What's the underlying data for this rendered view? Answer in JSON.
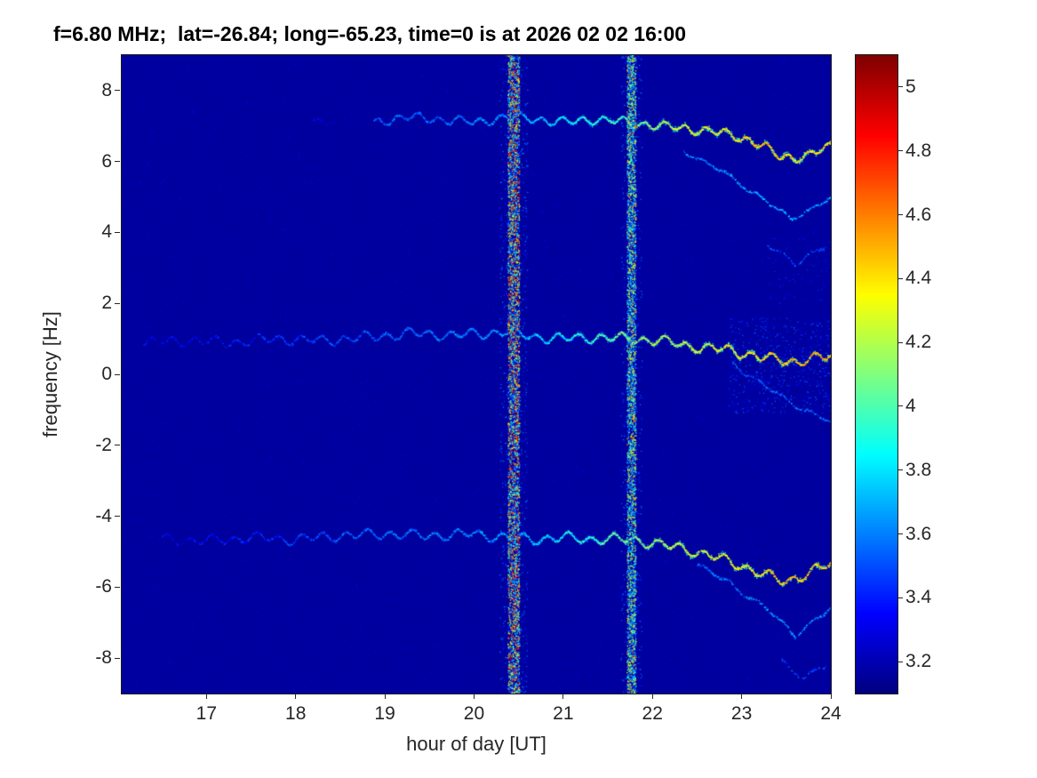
{
  "chart_data": {
    "type": "heatmap",
    "title": "f=6.80 MHz;  lat=-26.84; long=-65.23, time=0 is at 2026 02 02 16:00",
    "xlabel": "hour of day [UT]",
    "ylabel": "frequency [Hz]",
    "xlim": [
      16.05,
      24
    ],
    "ylim": [
      -9,
      9
    ],
    "grid": false,
    "x_ticks": [
      {
        "v": 17,
        "label": "17"
      },
      {
        "v": 18,
        "label": "18"
      },
      {
        "v": 19,
        "label": "19"
      },
      {
        "v": 20,
        "label": "20"
      },
      {
        "v": 21,
        "label": "21"
      },
      {
        "v": 22,
        "label": "22"
      },
      {
        "v": 23,
        "label": "23"
      },
      {
        "v": 24,
        "label": "24"
      }
    ],
    "y_ticks": [
      {
        "v": -8,
        "label": "-8"
      },
      {
        "v": -6,
        "label": "-6"
      },
      {
        "v": -4,
        "label": "-4"
      },
      {
        "v": -2,
        "label": "-2"
      },
      {
        "v": 0,
        "label": "0"
      },
      {
        "v": 2,
        "label": "2"
      },
      {
        "v": 4,
        "label": "4"
      },
      {
        "v": 6,
        "label": "6"
      },
      {
        "v": 8,
        "label": "8"
      }
    ],
    "colorbar": {
      "colormap": "jet",
      "position": "right",
      "range": [
        3.1,
        5.1
      ],
      "ticks": [
        {
          "v": 3.2,
          "label": "3.2"
        },
        {
          "v": 3.4,
          "label": "3.4"
        },
        {
          "v": 3.6,
          "label": "3.6"
        },
        {
          "v": 3.8,
          "label": "3.8"
        },
        {
          "v": 4,
          "label": "4"
        },
        {
          "v": 4.2,
          "label": "4.2"
        },
        {
          "v": 4.4,
          "label": "4.4"
        },
        {
          "v": 4.6,
          "label": "4.6"
        },
        {
          "v": 4.8,
          "label": "4.8"
        },
        {
          "v": 5,
          "label": "5"
        }
      ]
    },
    "background_value": 3.16,
    "noise": {
      "count": 3000,
      "vmin": 3.17,
      "vmax": 3.33
    },
    "vertical_stripes": [
      {
        "x": 20.44,
        "w": 0.13,
        "density": 0.95,
        "vmin": 3.35,
        "vmax": 5.0,
        "red_prob": 0.07
      },
      {
        "x": 21.76,
        "w": 0.1,
        "density": 0.9,
        "vmin": 3.45,
        "vmax": 4.55,
        "red_prob": 0.02
      }
    ],
    "scatter_patches": [
      {
        "x0": 22.85,
        "x1": 24.0,
        "y0": -1.1,
        "y1": 1.6,
        "count": 900,
        "vmin": 3.22,
        "vmax": 3.55
      },
      {
        "x0": 23.3,
        "x1": 24.0,
        "y0": 2.0,
        "y1": 4.0,
        "count": 120,
        "vmin": 3.2,
        "vmax": 3.45
      }
    ],
    "traces": [
      {
        "name": "upper-pre",
        "amp": 0.06,
        "period": 0.2,
        "gap": 0.45,
        "anchors": [
          [
            18.2,
            7.1,
            3.32
          ],
          [
            18.45,
            7.15,
            3.3
          ]
        ]
      },
      {
        "name": "upper-main",
        "amp": 0.1,
        "period": 0.23,
        "gap": 0.05,
        "anchors": [
          [
            18.88,
            7.1,
            3.5
          ],
          [
            19.2,
            7.25,
            3.55
          ],
          [
            19.6,
            7.2,
            3.5
          ],
          [
            20.0,
            7.1,
            3.6
          ],
          [
            20.35,
            7.25,
            3.6
          ],
          [
            20.7,
            7.2,
            3.7
          ],
          [
            21.0,
            7.1,
            3.8
          ],
          [
            21.35,
            7.2,
            3.9
          ],
          [
            21.74,
            7.1,
            4.0
          ],
          [
            22.1,
            7.0,
            4.2
          ],
          [
            22.5,
            6.9,
            4.3
          ],
          [
            22.9,
            6.75,
            4.35
          ],
          [
            23.2,
            6.5,
            4.45
          ],
          [
            23.45,
            6.1,
            4.4
          ],
          [
            23.7,
            6.15,
            4.35
          ],
          [
            24.0,
            6.4,
            4.4
          ]
        ]
      },
      {
        "name": "upper-echo",
        "amp": 0.05,
        "period": 0.3,
        "gap": 0.4,
        "anchors": [
          [
            22.35,
            6.3,
            3.6
          ],
          [
            22.8,
            5.7,
            3.62
          ],
          [
            23.2,
            5.0,
            3.68
          ],
          [
            23.55,
            4.4,
            3.7
          ],
          [
            23.8,
            4.65,
            3.65
          ],
          [
            24.0,
            5.0,
            3.62
          ]
        ]
      },
      {
        "name": "upper-echo-faint",
        "amp": 0.06,
        "period": 0.3,
        "gap": 0.6,
        "anchors": [
          [
            23.25,
            3.7,
            3.45
          ],
          [
            23.6,
            3.15,
            3.5
          ],
          [
            23.95,
            3.6,
            3.45
          ]
        ]
      },
      {
        "name": "middle-main",
        "amp": 0.11,
        "period": 0.24,
        "gap": 0.08,
        "anchors": [
          [
            16.3,
            0.9,
            3.3
          ],
          [
            16.8,
            0.95,
            3.32
          ],
          [
            17.3,
            0.9,
            3.36
          ],
          [
            17.8,
            1.0,
            3.42
          ],
          [
            18.3,
            0.95,
            3.46
          ],
          [
            18.8,
            1.05,
            3.5
          ],
          [
            19.3,
            1.15,
            3.55
          ],
          [
            19.8,
            1.1,
            3.58
          ],
          [
            20.35,
            1.2,
            3.65
          ],
          [
            20.7,
            1.05,
            3.72
          ],
          [
            21.0,
            1.0,
            3.85
          ],
          [
            21.35,
            1.05,
            3.95
          ],
          [
            21.74,
            1.0,
            4.1
          ],
          [
            22.1,
            0.95,
            4.2
          ],
          [
            22.4,
            0.8,
            4.25
          ],
          [
            22.8,
            0.7,
            4.3
          ],
          [
            23.1,
            0.55,
            4.35
          ],
          [
            23.4,
            0.4,
            4.42
          ],
          [
            23.6,
            0.35,
            4.45
          ],
          [
            23.8,
            0.45,
            4.5
          ],
          [
            24.0,
            0.5,
            4.5
          ]
        ]
      },
      {
        "name": "middle-echo",
        "amp": 0.05,
        "period": 0.3,
        "gap": 0.45,
        "anchors": [
          [
            22.9,
            0.3,
            3.5
          ],
          [
            23.3,
            -0.4,
            3.52
          ],
          [
            23.7,
            -1.0,
            3.55
          ],
          [
            24.0,
            -1.35,
            3.5
          ]
        ]
      },
      {
        "name": "lower-main",
        "amp": 0.11,
        "period": 0.25,
        "gap": 0.08,
        "anchors": [
          [
            16.5,
            -4.65,
            3.3
          ],
          [
            17.0,
            -4.7,
            3.33
          ],
          [
            17.5,
            -4.6,
            3.38
          ],
          [
            18.0,
            -4.65,
            3.44
          ],
          [
            18.5,
            -4.55,
            3.5
          ],
          [
            19.0,
            -4.5,
            3.55
          ],
          [
            19.5,
            -4.55,
            3.58
          ],
          [
            20.0,
            -4.5,
            3.6
          ],
          [
            20.35,
            -4.6,
            3.65
          ],
          [
            20.7,
            -4.65,
            3.72
          ],
          [
            21.0,
            -4.6,
            3.85
          ],
          [
            21.35,
            -4.65,
            3.95
          ],
          [
            21.74,
            -4.65,
            4.1
          ],
          [
            22.1,
            -4.8,
            4.2
          ],
          [
            22.4,
            -4.95,
            4.25
          ],
          [
            22.7,
            -5.15,
            4.3
          ],
          [
            23.0,
            -5.4,
            4.35
          ],
          [
            23.3,
            -5.7,
            4.4
          ],
          [
            23.5,
            -5.85,
            4.45
          ],
          [
            23.7,
            -5.65,
            4.4
          ],
          [
            24.0,
            -5.35,
            4.45
          ]
        ]
      },
      {
        "name": "lower-echo",
        "amp": 0.06,
        "period": 0.3,
        "gap": 0.4,
        "anchors": [
          [
            22.5,
            -5.35,
            3.55
          ],
          [
            22.9,
            -5.95,
            3.6
          ],
          [
            23.3,
            -6.65,
            3.62
          ],
          [
            23.6,
            -7.35,
            3.65
          ],
          [
            23.8,
            -7.0,
            3.6
          ],
          [
            24.0,
            -6.6,
            3.6
          ]
        ]
      },
      {
        "name": "lower-echo-faint",
        "amp": 0.06,
        "period": 0.3,
        "gap": 0.6,
        "anchors": [
          [
            23.45,
            -8.1,
            3.45
          ],
          [
            23.7,
            -8.55,
            3.5
          ],
          [
            23.95,
            -8.2,
            3.45
          ]
        ]
      }
    ]
  }
}
